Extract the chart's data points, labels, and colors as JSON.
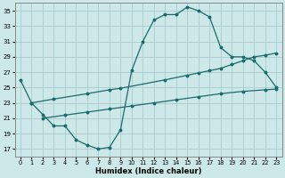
{
  "xlabel": "Humidex (Indice chaleur)",
  "bg_color": "#cce8e8",
  "grid_color": "#aacccc",
  "line_color": "#1a6b6b",
  "xlim": [
    -0.5,
    23.5
  ],
  "ylim": [
    16,
    36
  ],
  "yticks": [
    17,
    19,
    21,
    23,
    25,
    27,
    29,
    31,
    33,
    35
  ],
  "xticks": [
    0,
    1,
    2,
    3,
    4,
    5,
    6,
    7,
    8,
    9,
    10,
    11,
    12,
    13,
    14,
    15,
    16,
    17,
    18,
    19,
    20,
    21,
    22,
    23
  ],
  "curve1_x": [
    0,
    1,
    2,
    3,
    4,
    5,
    6,
    7,
    8,
    9,
    10,
    11,
    12,
    13,
    14,
    15,
    16,
    17,
    18,
    19,
    20,
    21,
    22,
    23
  ],
  "curve1_y": [
    26.0,
    23.0,
    21.5,
    20.0,
    20.0,
    18.2,
    17.5,
    17.0,
    17.2,
    19.5,
    27.2,
    31.0,
    33.8,
    34.5,
    34.5,
    35.5,
    35.0,
    34.2,
    30.2,
    29.0,
    29.0,
    28.5,
    27.0,
    25.0
  ],
  "curve2_x": [
    1,
    3,
    6,
    8,
    9,
    13,
    15,
    16,
    17,
    18,
    19,
    20,
    21,
    22,
    23
  ],
  "curve2_y": [
    23.0,
    23.5,
    24.2,
    24.7,
    24.9,
    26.0,
    26.6,
    26.9,
    27.2,
    27.5,
    28.0,
    28.5,
    29.0,
    29.2,
    29.5
  ],
  "curve3_x": [
    2,
    4,
    6,
    8,
    10,
    12,
    14,
    16,
    18,
    20,
    22,
    23
  ],
  "curve3_y": [
    21.0,
    21.4,
    21.8,
    22.2,
    22.6,
    23.0,
    23.4,
    23.8,
    24.2,
    24.5,
    24.7,
    24.8
  ]
}
